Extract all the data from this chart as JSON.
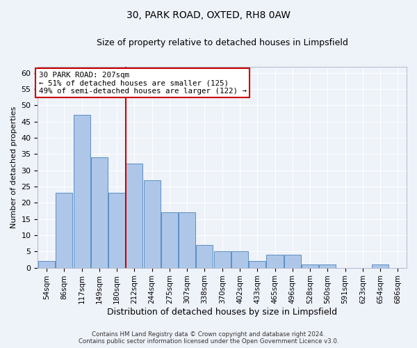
{
  "title": "30, PARK ROAD, OXTED, RH8 0AW",
  "subtitle": "Size of property relative to detached houses in Limpsfield",
  "xlabel": "Distribution of detached houses by size in Limpsfield",
  "ylabel": "Number of detached properties",
  "categories": [
    "54sqm",
    "86sqm",
    "117sqm",
    "149sqm",
    "180sqm",
    "212sqm",
    "244sqm",
    "275sqm",
    "307sqm",
    "338sqm",
    "370sqm",
    "402sqm",
    "433sqm",
    "465sqm",
    "496sqm",
    "528sqm",
    "560sqm",
    "591sqm",
    "623sqm",
    "654sqm",
    "686sqm"
  ],
  "values": [
    2,
    23,
    47,
    34,
    23,
    32,
    27,
    17,
    17,
    7,
    5,
    5,
    2,
    4,
    4,
    1,
    1,
    0,
    0,
    1,
    0
  ],
  "bar_color": "#aec6e8",
  "bar_edge_color": "#5a8fc2",
  "marker_index": 5,
  "marker_label": "30 PARK ROAD: 207sqm",
  "marker_note1": "← 51% of detached houses are smaller (125)",
  "marker_note2": "49% of semi-detached houses are larger (122) →",
  "ylim": [
    0,
    62
  ],
  "yticks": [
    0,
    5,
    10,
    15,
    20,
    25,
    30,
    35,
    40,
    45,
    50,
    55,
    60
  ],
  "footer1": "Contains HM Land Registry data © Crown copyright and database right 2024.",
  "footer2": "Contains public sector information licensed under the Open Government Licence v3.0.",
  "bg_color": "#eef2f9",
  "grid_color": "#ffffff",
  "marker_line_color": "#cc0000",
  "box_edge_color": "#cc0000",
  "box_face_color": "#ffffff",
  "title_fontsize": 10,
  "subtitle_fontsize": 9
}
